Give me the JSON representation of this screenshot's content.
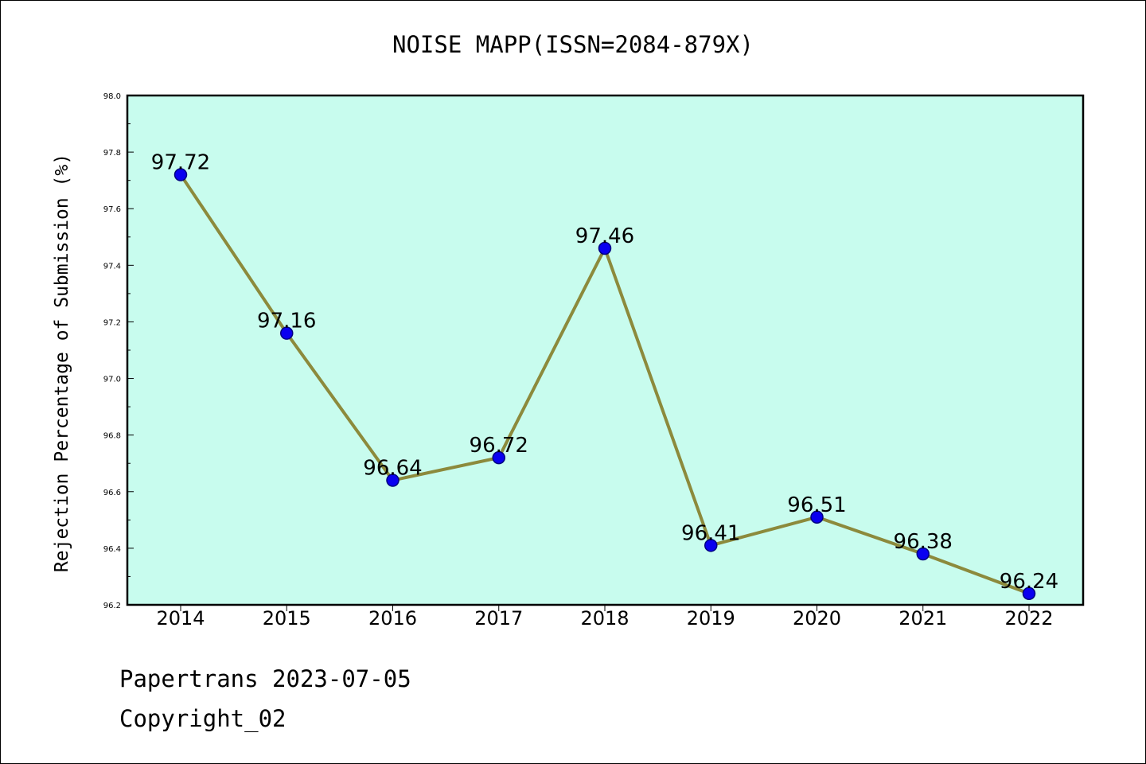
{
  "chart_data": {
    "type": "line",
    "title": "NOISE MAPP(ISSN=2084-879X)",
    "xlabel": "",
    "ylabel": "Rejection Percentage of Submission (%)",
    "categories": [
      "2014",
      "2015",
      "2016",
      "2017",
      "2018",
      "2019",
      "2020",
      "2021",
      "2022"
    ],
    "values": [
      97.72,
      97.16,
      96.64,
      96.72,
      97.46,
      96.41,
      96.51,
      96.38,
      96.24
    ],
    "data_labels": [
      "97.72",
      "97.16",
      "96.64",
      "96.72",
      "97.46",
      "96.41",
      "96.51",
      "96.38",
      "96.24"
    ],
    "ylim": [
      96.2,
      98.0
    ],
    "yticks": [
      "96.2",
      "96.4",
      "96.6",
      "96.8",
      "97.0",
      "97.2",
      "97.4",
      "97.6",
      "97.8",
      "98.0"
    ],
    "grid": false,
    "colors": {
      "plot_background": "#c8fcee",
      "line": "#8c8a3c",
      "marker": "#0a00f0",
      "marker_edge": "#000080"
    }
  },
  "footer": {
    "source": "Papertrans 2023-07-05",
    "copyright": "Copyright_02"
  }
}
